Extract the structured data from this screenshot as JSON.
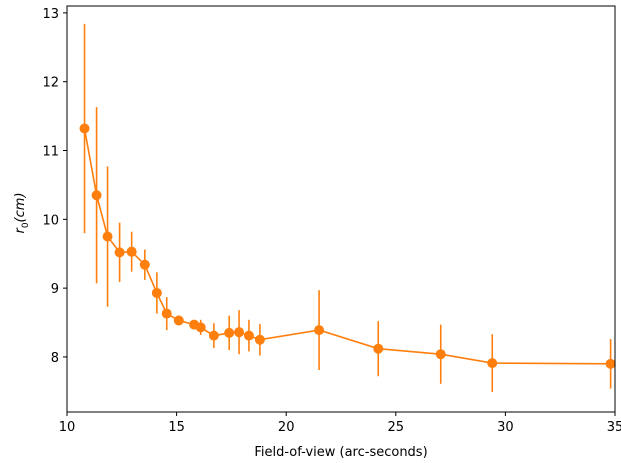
{
  "chart_data": {
    "type": "line",
    "title": "",
    "xlabel": "Field-of-view (arc-seconds)",
    "ylabel_main": "r",
    "ylabel_sub": "0",
    "ylabel_rest": "(cm)",
    "xlim": [
      10,
      35
    ],
    "ylim": [
      7.2,
      13.1
    ],
    "xticks": [
      10,
      15,
      20,
      25,
      30,
      35
    ],
    "yticks": [
      8,
      9,
      10,
      11,
      12,
      13
    ],
    "grid": false,
    "legend": "none",
    "color": "#ff7f0e",
    "series": [
      {
        "x": [
          10.8,
          11.35,
          11.85,
          12.4,
          12.95,
          13.55,
          14.1,
          14.55,
          15.1,
          15.8,
          16.1,
          16.7,
          17.4,
          17.85,
          18.3,
          18.8,
          21.5,
          24.2,
          27.05,
          29.4,
          34.8
        ],
        "y": [
          11.32,
          10.35,
          9.75,
          9.52,
          9.53,
          9.34,
          8.93,
          8.63,
          8.53,
          8.47,
          8.43,
          8.31,
          8.35,
          8.36,
          8.31,
          8.25,
          8.39,
          8.12,
          8.04,
          7.91,
          7.9
        ],
        "yerr": [
          1.52,
          1.28,
          1.02,
          0.43,
          0.29,
          0.22,
          0.3,
          0.24,
          0.07,
          0.06,
          0.11,
          0.18,
          0.25,
          0.32,
          0.23,
          0.23,
          0.58,
          0.4,
          0.43,
          0.42,
          0.36
        ]
      }
    ]
  }
}
